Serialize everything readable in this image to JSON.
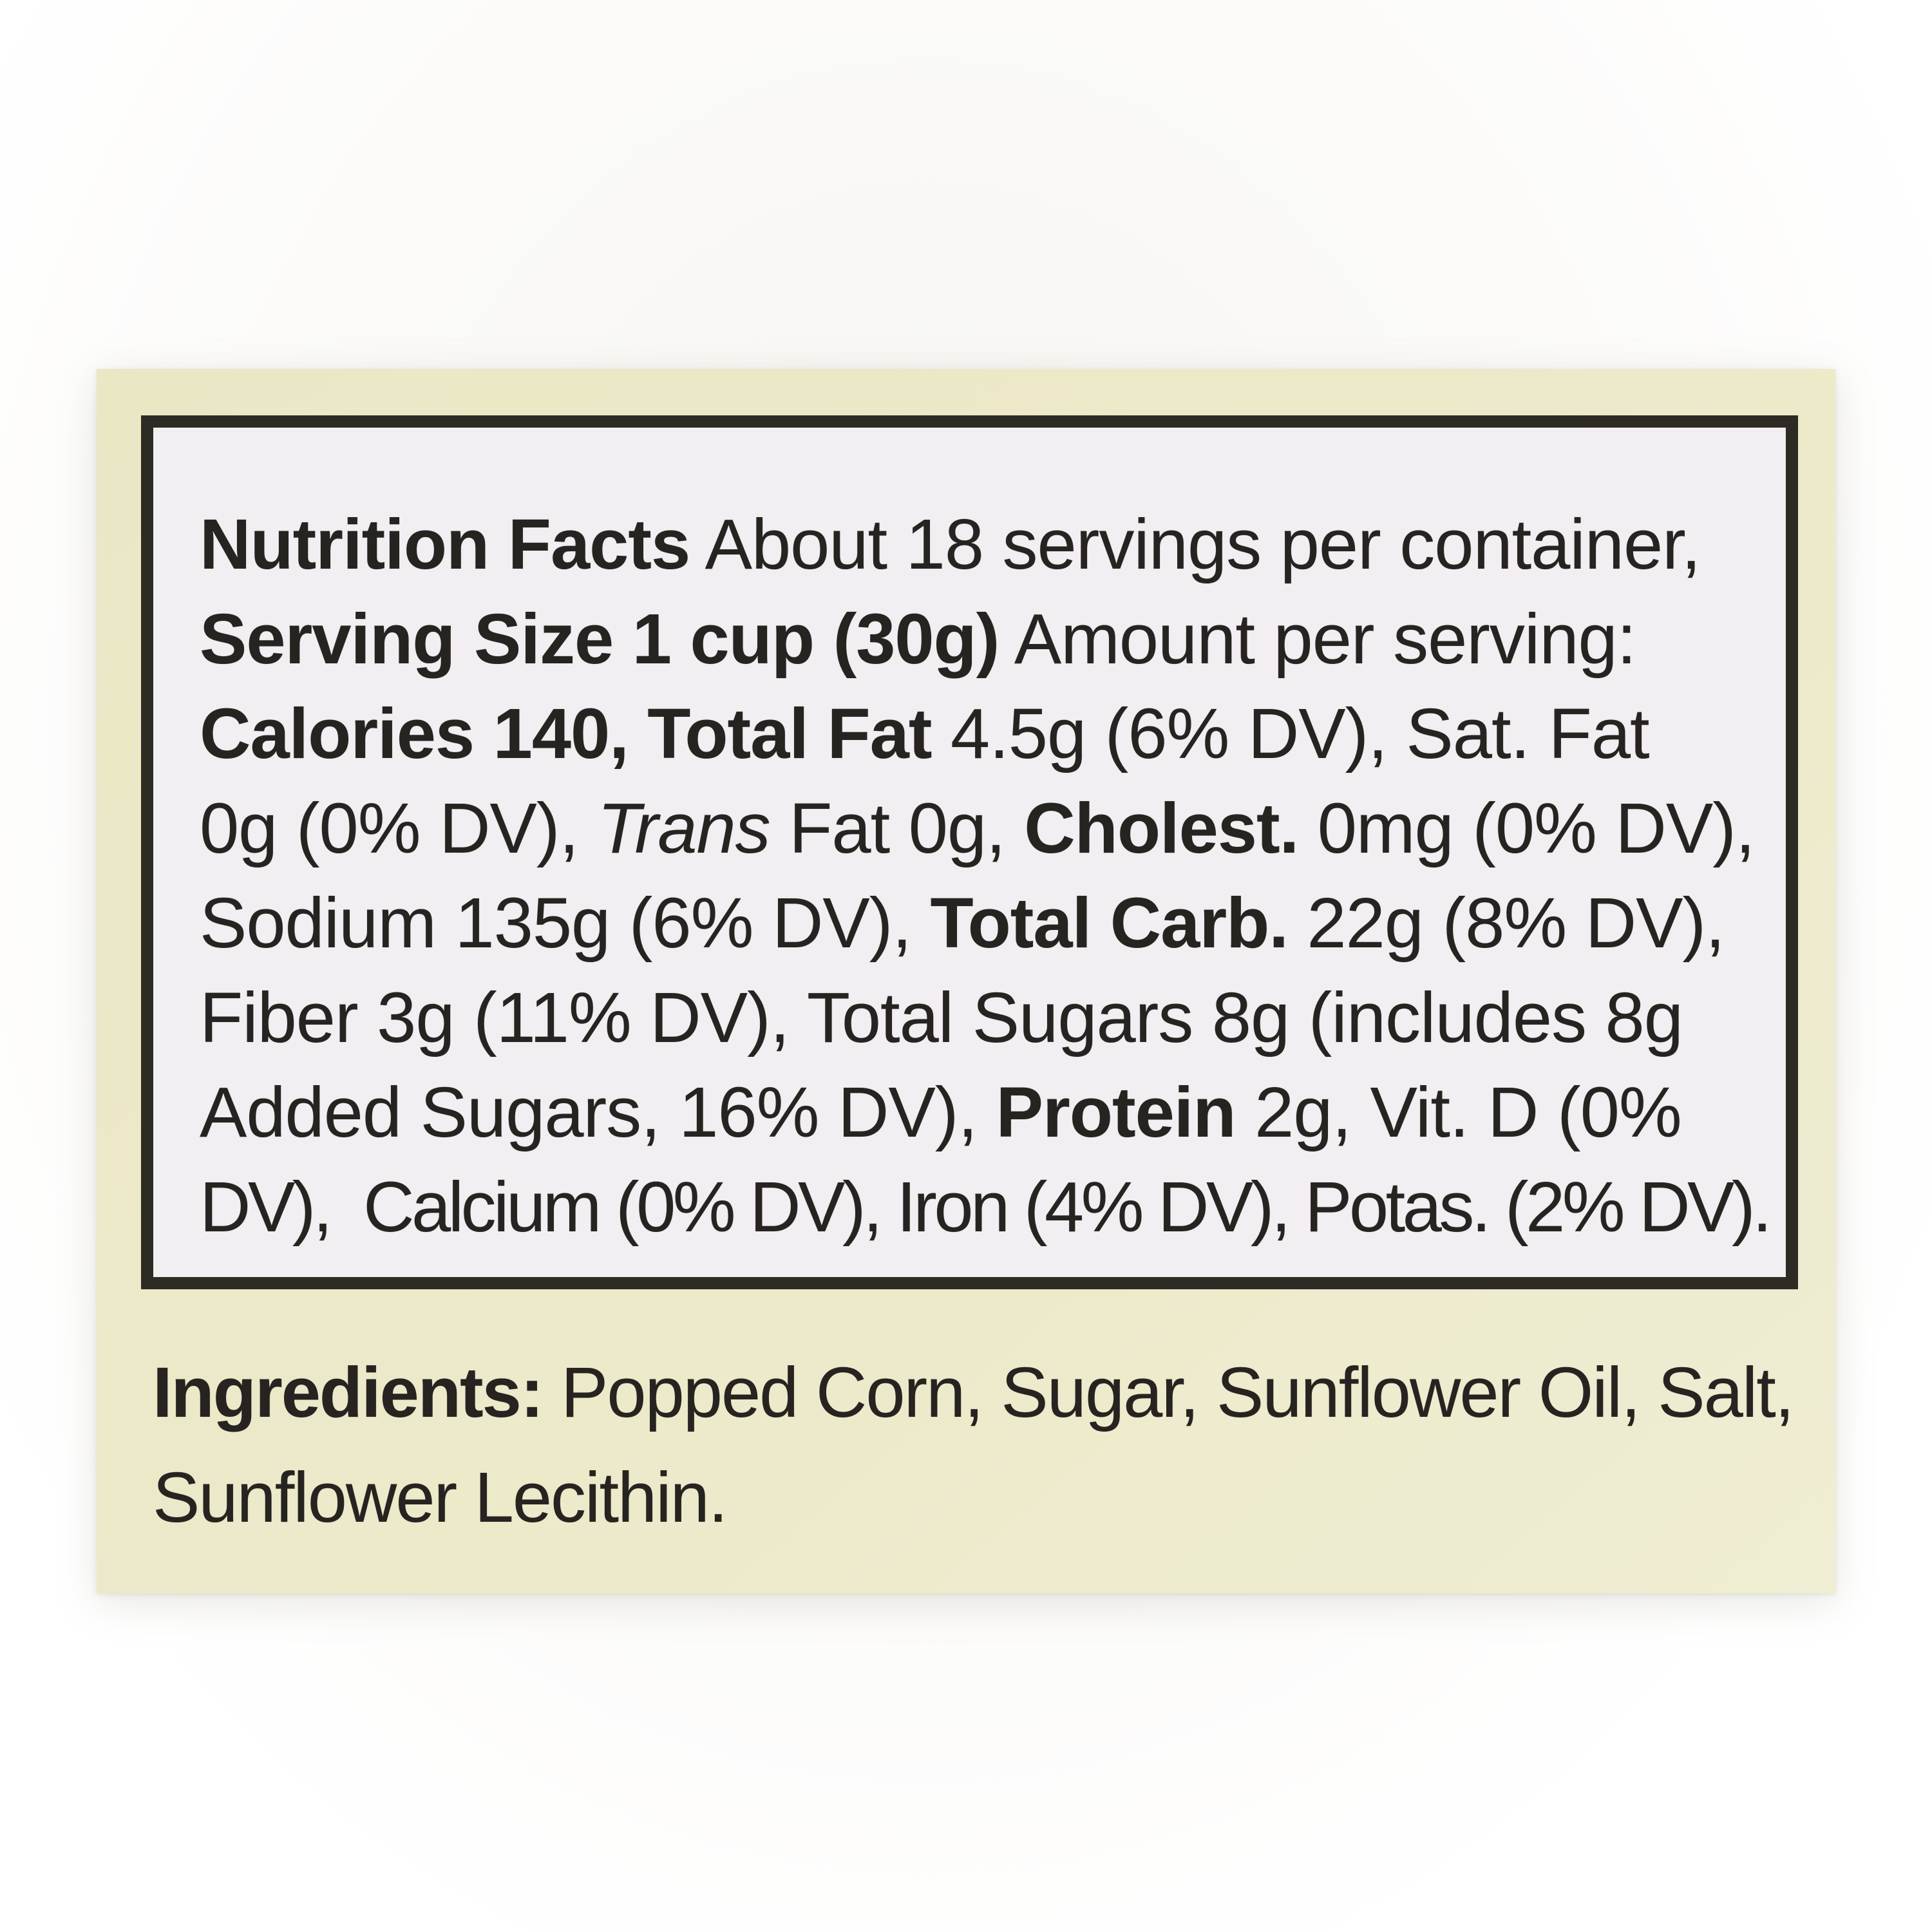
{
  "colors": {
    "page_bg": "#ffffff",
    "label_bg": "#eae7c5",
    "panel_bg": "#f2eef1",
    "panel_border": "#2e2a24",
    "ink": "#272320"
  },
  "nutrition_panel": {
    "lines": [
      {
        "segments": [
          {
            "style": "bold",
            "text": "Nutrition Facts"
          },
          {
            "style": "regular",
            "text": " About 18 servings per container,"
          }
        ]
      },
      {
        "segments": [
          {
            "style": "bold",
            "text": "Serving Size 1 cup (30g)"
          },
          {
            "style": "regular",
            "text": " Amount per serving:"
          }
        ]
      },
      {
        "segments": [
          {
            "style": "bold",
            "text": "Calories 140, Total Fat"
          },
          {
            "style": "regular",
            "text": " 4.5g (6% DV), Sat. Fat"
          }
        ]
      },
      {
        "segments": [
          {
            "style": "regular",
            "text": "0g (0% DV), "
          },
          {
            "style": "italic",
            "text": "Trans"
          },
          {
            "style": "regular",
            "text": " Fat 0g, "
          },
          {
            "style": "bold",
            "text": "Cholest."
          },
          {
            "style": "regular",
            "text": " 0mg (0% DV),"
          }
        ]
      },
      {
        "segments": [
          {
            "style": "regular",
            "text": "Sodium 135g (6% DV), "
          },
          {
            "style": "bold",
            "text": "Total Carb."
          },
          {
            "style": "regular",
            "text": " 22g (8% DV),"
          }
        ]
      },
      {
        "segments": [
          {
            "style": "regular",
            "text": "Fiber 3g (11% DV), Total Sugars 8g (includes 8g"
          }
        ]
      },
      {
        "segments": [
          {
            "style": "regular",
            "text": "Added Sugars, 16% DV), "
          },
          {
            "style": "bold",
            "text": "Protein"
          },
          {
            "style": "regular",
            "text": " 2g, Vit. D (0%"
          }
        ]
      },
      {
        "segments": [
          {
            "style": "regular",
            "text": "DV),  Calcium (0% DV), Iron (4% DV), Potas. (2% DV)."
          }
        ]
      }
    ]
  },
  "ingredients": {
    "lines": [
      {
        "segments": [
          {
            "style": "bold",
            "text": "Ingredients:"
          },
          {
            "style": "regular",
            "text": " Popped Corn, Sugar, Sunflower Oil, Salt,"
          }
        ]
      },
      {
        "segments": [
          {
            "style": "regular",
            "text": "Sunflower Lecithin."
          }
        ]
      }
    ]
  }
}
